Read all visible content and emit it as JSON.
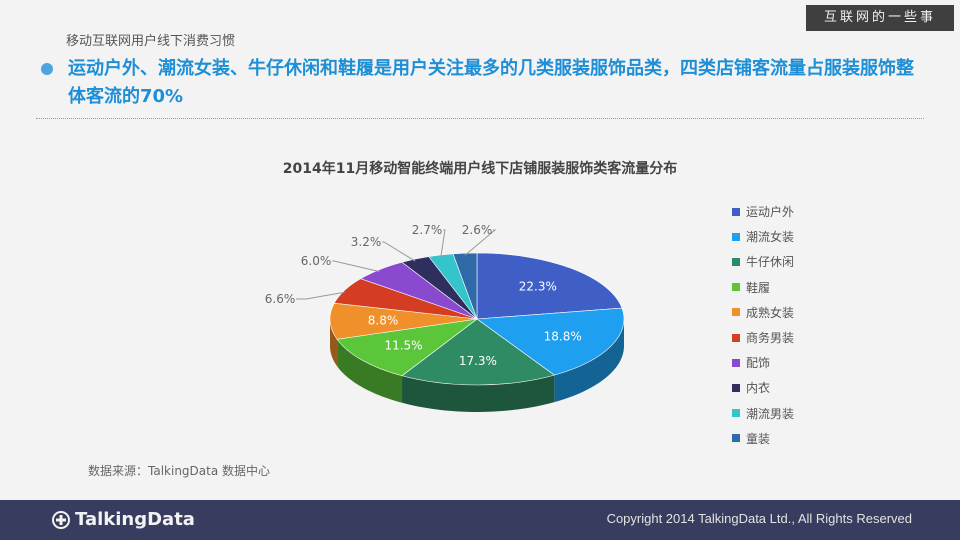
{
  "badge": "互联网的一些事",
  "section_label": "移动互联网用户线下消费习惯",
  "headline": "运动户外、潮流女装、牛仔休闲和鞋履是用户关注最多的几类服装服饰品类，四类店铺客流量占服装服饰整体客流的70%",
  "source": "数据来源：TalkingData 数据中心",
  "footer": {
    "brand": "TalkingData",
    "copyright": "Copyright 2014 TalkingData Ltd., All Rights Reserved"
  },
  "colors": {
    "accent": "#1e8fd6",
    "footer_bg": "#383c5e"
  },
  "chart_data": {
    "type": "pie",
    "title": "2014年11月移动智能终端用户线下店铺服装服饰类客流量分布",
    "legend_position": "right",
    "categories": [
      "运动户外",
      "潮流女装",
      "牛仔休闲",
      "鞋履",
      "成熟女装",
      "商务男装",
      "配饰",
      "内衣",
      "潮流男装",
      "童装"
    ],
    "values": [
      22.3,
      18.8,
      17.3,
      11.5,
      8.8,
      6.6,
      6.0,
      3.2,
      2.7,
      2.6
    ],
    "labels": [
      "22.3%",
      "18.8%",
      "17.3%",
      "11.5%",
      "8.8%",
      "6.6%",
      "6.0%",
      "3.2%",
      "2.7%",
      "2.6%"
    ],
    "colors": [
      "#3f5fc6",
      "#1e9ff0",
      "#2e8b63",
      "#5cc63a",
      "#f0902a",
      "#d43d22",
      "#8a4ad0",
      "#2e2f5e",
      "#36c4cc",
      "#2e6aa8"
    ]
  }
}
